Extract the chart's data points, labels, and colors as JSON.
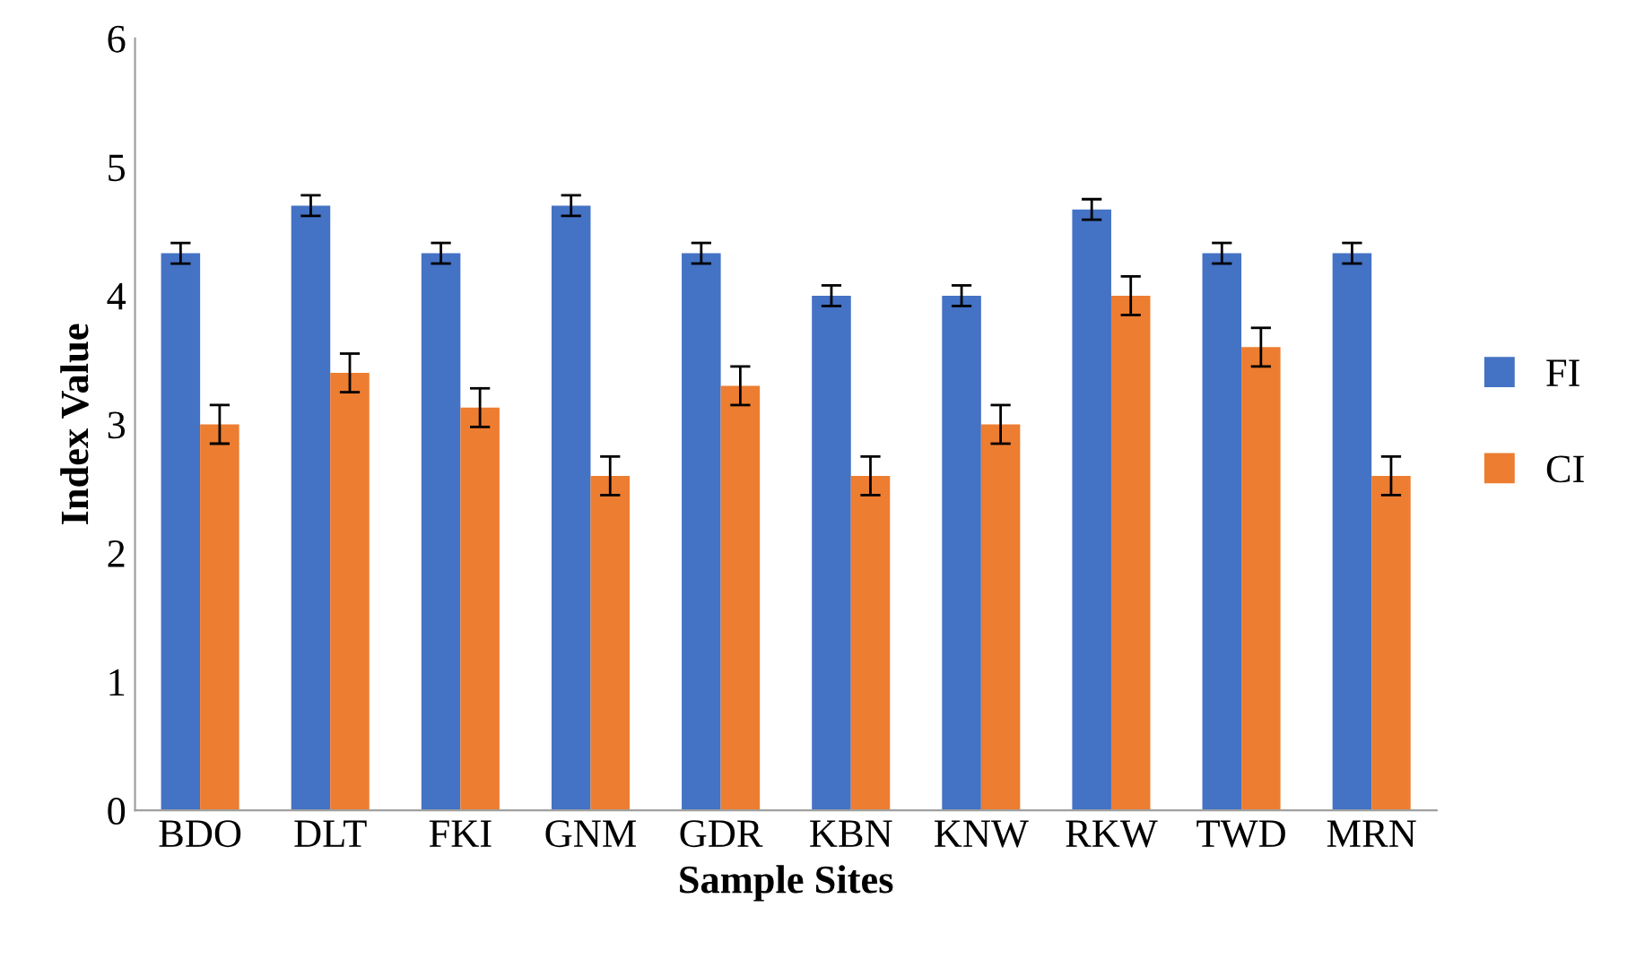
{
  "chart_data": {
    "type": "bar",
    "xlabel": "Sample Sites",
    "ylabel": "Index Value",
    "categories": [
      "BDO",
      "DLT",
      "FKI",
      "GNM",
      "GDR",
      "KBN",
      "KNW",
      "RKW",
      "TWD",
      "MRN"
    ],
    "series": [
      {
        "name": "FI",
        "color": "#4472c4",
        "values": [
          4.33,
          4.7,
          4.33,
          4.7,
          4.33,
          4.0,
          4.0,
          4.67,
          4.33,
          4.33
        ],
        "errors": [
          0.08,
          0.08,
          0.08,
          0.08,
          0.08,
          0.08,
          0.08,
          0.08,
          0.08,
          0.08
        ]
      },
      {
        "name": "CI",
        "color": "#ed7d31",
        "values": [
          3.0,
          3.4,
          3.13,
          2.6,
          3.3,
          2.6,
          3.0,
          4.0,
          3.6,
          2.6
        ],
        "errors": [
          0.15,
          0.15,
          0.15,
          0.15,
          0.15,
          0.15,
          0.15,
          0.15,
          0.15,
          0.15
        ]
      }
    ],
    "ylim": [
      0,
      6
    ],
    "yticks": [
      0,
      1,
      2,
      3,
      4,
      5,
      6
    ],
    "grid": false,
    "legend": "right"
  }
}
